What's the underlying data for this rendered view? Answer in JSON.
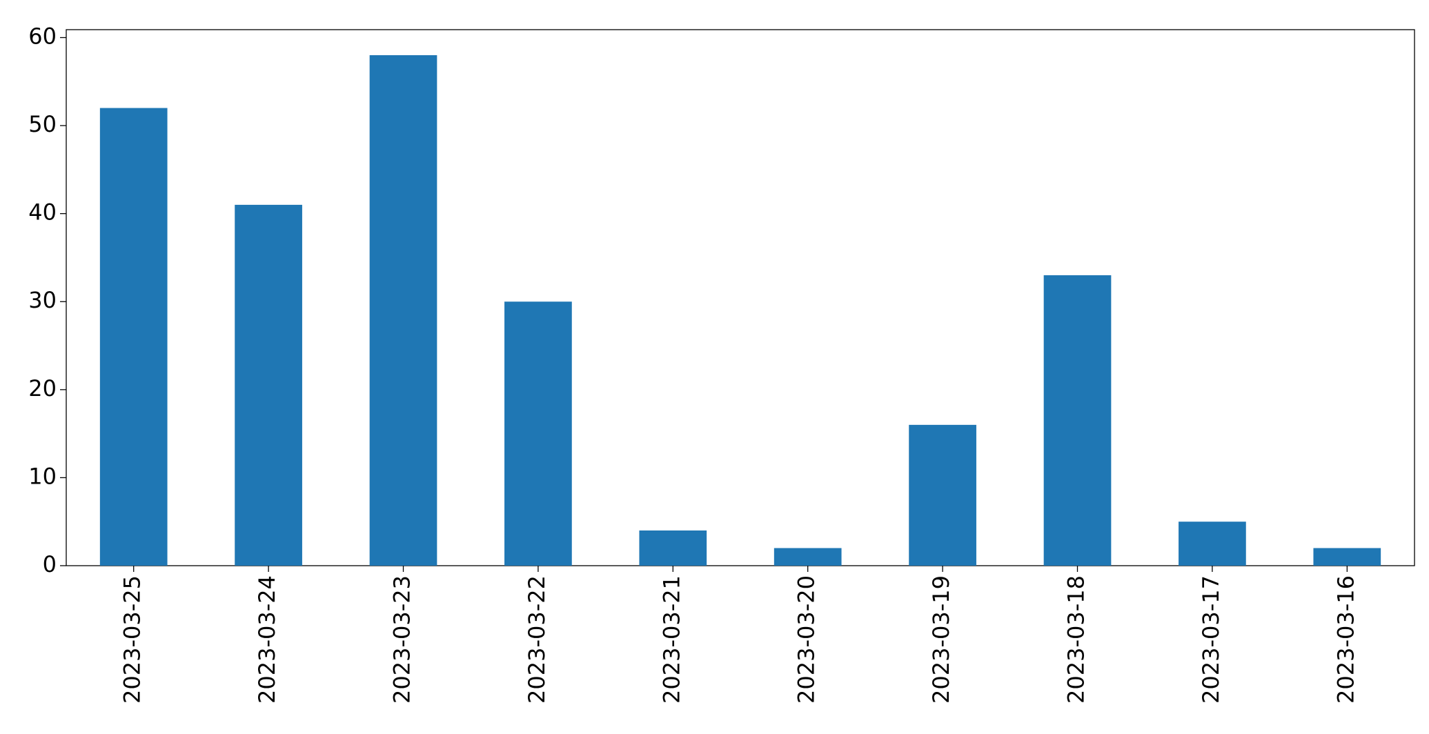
{
  "chart_data": {
    "type": "bar",
    "categories": [
      "2023-03-25",
      "2023-03-24",
      "2023-03-23",
      "2023-03-22",
      "2023-03-21",
      "2023-03-20",
      "2023-03-19",
      "2023-03-18",
      "2023-03-17",
      "2023-03-16"
    ],
    "values": [
      52,
      41,
      58,
      30,
      4,
      2,
      16,
      33,
      5,
      2
    ],
    "color": "#1f77b4",
    "ylim": [
      0,
      60.9
    ],
    "yticks": [
      0,
      10,
      20,
      30,
      40,
      50,
      60
    ],
    "grid": false
  }
}
